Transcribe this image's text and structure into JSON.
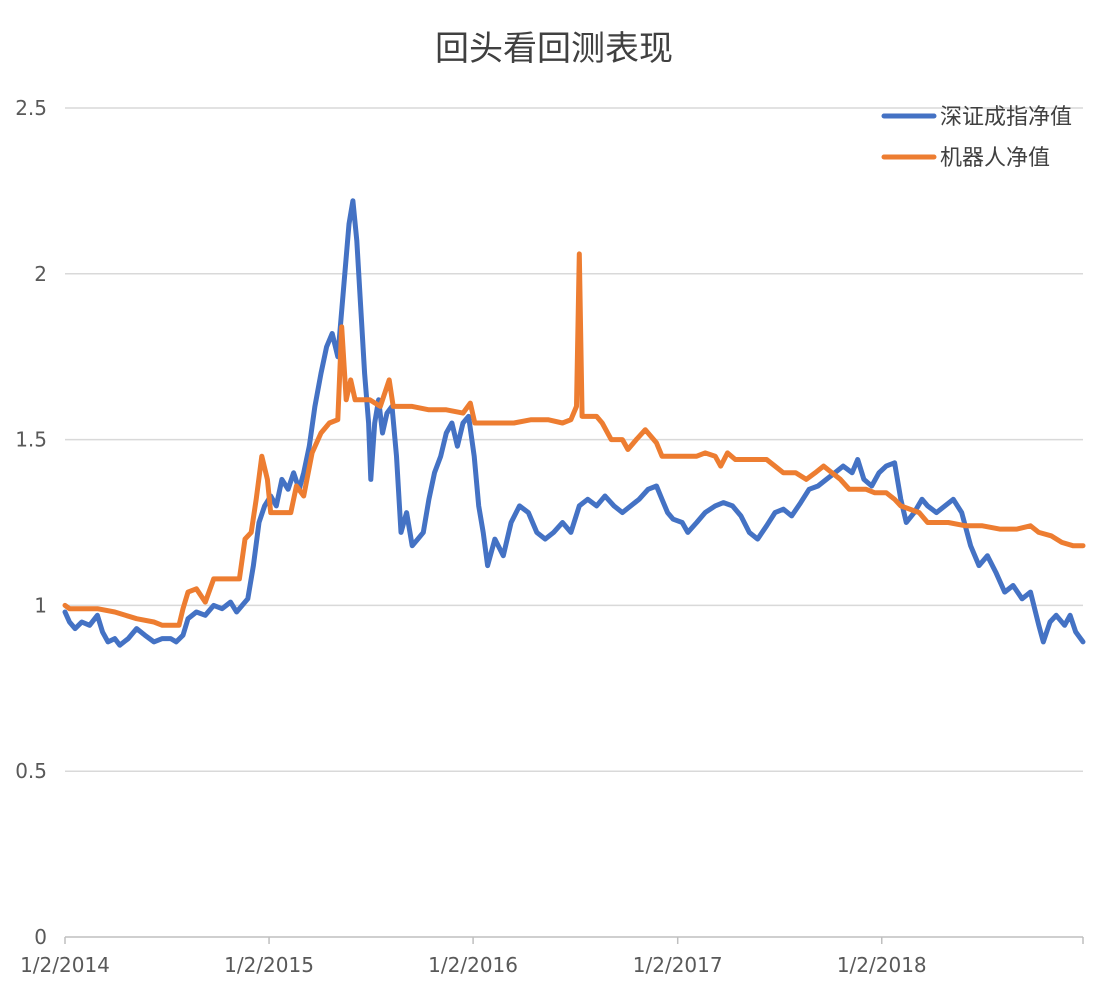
{
  "chart_data": {
    "type": "line",
    "title": "回头看回测表现",
    "xlabel": "",
    "ylabel": "",
    "ylim": [
      0,
      2.5
    ],
    "yticks": [
      "0",
      "0.5",
      "1",
      "1.5",
      "2",
      "2.5"
    ],
    "xlim": [
      "2014-01-02",
      "2018-12-28"
    ],
    "xticks": [
      "1/2/2014",
      "1/2/2015",
      "1/2/2016",
      "1/2/2017",
      "1/2/2018"
    ],
    "xtick_dates": [
      "2014-01-02",
      "2015-01-02",
      "2016-01-02",
      "2017-01-02",
      "2018-01-02"
    ],
    "grid": "horizontal",
    "legend": "top-right",
    "series": [
      {
        "name": "深证成指净值",
        "color": "#4472C4",
        "points": [
          [
            "2014-01-02",
            0.98
          ],
          [
            "2014-01-10",
            0.95
          ],
          [
            "2014-01-20",
            0.93
          ],
          [
            "2014-02-01",
            0.95
          ],
          [
            "2014-02-15",
            0.94
          ],
          [
            "2014-03-01",
            0.97
          ],
          [
            "2014-03-10",
            0.92
          ],
          [
            "2014-03-20",
            0.89
          ],
          [
            "2014-04-01",
            0.9
          ],
          [
            "2014-04-10",
            0.88
          ],
          [
            "2014-04-25",
            0.9
          ],
          [
            "2014-05-10",
            0.93
          ],
          [
            "2014-05-25",
            0.91
          ],
          [
            "2014-06-10",
            0.89
          ],
          [
            "2014-06-25",
            0.9
          ],
          [
            "2014-07-10",
            0.9
          ],
          [
            "2014-07-20",
            0.89
          ],
          [
            "2014-08-01",
            0.91
          ],
          [
            "2014-08-10",
            0.96
          ],
          [
            "2014-08-25",
            0.98
          ],
          [
            "2014-09-10",
            0.97
          ],
          [
            "2014-09-25",
            1.0
          ],
          [
            "2014-10-10",
            0.99
          ],
          [
            "2014-10-25",
            1.01
          ],
          [
            "2014-11-05",
            0.98
          ],
          [
            "2014-11-15",
            1.0
          ],
          [
            "2014-11-25",
            1.02
          ],
          [
            "2014-12-05",
            1.12
          ],
          [
            "2014-12-15",
            1.25
          ],
          [
            "2014-12-25",
            1.3
          ],
          [
            "2015-01-05",
            1.33
          ],
          [
            "2015-01-15",
            1.3
          ],
          [
            "2015-01-25",
            1.38
          ],
          [
            "2015-02-05",
            1.35
          ],
          [
            "2015-02-15",
            1.4
          ],
          [
            "2015-02-25",
            1.35
          ],
          [
            "2015-03-05",
            1.4
          ],
          [
            "2015-03-15",
            1.48
          ],
          [
            "2015-03-25",
            1.6
          ],
          [
            "2015-04-05",
            1.7
          ],
          [
            "2015-04-15",
            1.78
          ],
          [
            "2015-04-25",
            1.82
          ],
          [
            "2015-05-05",
            1.75
          ],
          [
            "2015-05-15",
            1.95
          ],
          [
            "2015-05-25",
            2.15
          ],
          [
            "2015-06-01",
            2.22
          ],
          [
            "2015-06-08",
            2.1
          ],
          [
            "2015-06-15",
            1.9
          ],
          [
            "2015-06-22",
            1.7
          ],
          [
            "2015-06-29",
            1.55
          ],
          [
            "2015-07-03",
            1.38
          ],
          [
            "2015-07-10",
            1.55
          ],
          [
            "2015-07-17",
            1.62
          ],
          [
            "2015-07-24",
            1.52
          ],
          [
            "2015-08-01",
            1.58
          ],
          [
            "2015-08-10",
            1.6
          ],
          [
            "2015-08-18",
            1.45
          ],
          [
            "2015-08-26",
            1.22
          ],
          [
            "2015-09-05",
            1.28
          ],
          [
            "2015-09-15",
            1.18
          ],
          [
            "2015-09-25",
            1.2
          ],
          [
            "2015-10-05",
            1.22
          ],
          [
            "2015-10-15",
            1.32
          ],
          [
            "2015-10-25",
            1.4
          ],
          [
            "2015-11-05",
            1.45
          ],
          [
            "2015-11-15",
            1.52
          ],
          [
            "2015-11-25",
            1.55
          ],
          [
            "2015-12-05",
            1.48
          ],
          [
            "2015-12-15",
            1.55
          ],
          [
            "2015-12-25",
            1.57
          ],
          [
            "2016-01-04",
            1.45
          ],
          [
            "2016-01-12",
            1.3
          ],
          [
            "2016-01-20",
            1.22
          ],
          [
            "2016-01-28",
            1.12
          ],
          [
            "2016-02-10",
            1.2
          ],
          [
            "2016-02-25",
            1.15
          ],
          [
            "2016-03-10",
            1.25
          ],
          [
            "2016-03-25",
            1.3
          ],
          [
            "2016-04-10",
            1.28
          ],
          [
            "2016-04-25",
            1.22
          ],
          [
            "2016-05-10",
            1.2
          ],
          [
            "2016-05-25",
            1.22
          ],
          [
            "2016-06-10",
            1.25
          ],
          [
            "2016-06-25",
            1.22
          ],
          [
            "2016-07-10",
            1.3
          ],
          [
            "2016-07-25",
            1.32
          ],
          [
            "2016-08-10",
            1.3
          ],
          [
            "2016-08-25",
            1.33
          ],
          [
            "2016-09-10",
            1.3
          ],
          [
            "2016-09-25",
            1.28
          ],
          [
            "2016-10-10",
            1.3
          ],
          [
            "2016-10-25",
            1.32
          ],
          [
            "2016-11-10",
            1.35
          ],
          [
            "2016-11-25",
            1.36
          ],
          [
            "2016-12-05",
            1.32
          ],
          [
            "2016-12-15",
            1.28
          ],
          [
            "2016-12-25",
            1.26
          ],
          [
            "2017-01-10",
            1.25
          ],
          [
            "2017-01-20",
            1.22
          ],
          [
            "2017-02-05",
            1.25
          ],
          [
            "2017-02-20",
            1.28
          ],
          [
            "2017-03-10",
            1.3
          ],
          [
            "2017-03-25",
            1.31
          ],
          [
            "2017-04-10",
            1.3
          ],
          [
            "2017-04-25",
            1.27
          ],
          [
            "2017-05-10",
            1.22
          ],
          [
            "2017-05-25",
            1.2
          ],
          [
            "2017-06-10",
            1.24
          ],
          [
            "2017-06-25",
            1.28
          ],
          [
            "2017-07-10",
            1.29
          ],
          [
            "2017-07-25",
            1.27
          ],
          [
            "2017-08-10",
            1.31
          ],
          [
            "2017-08-25",
            1.35
          ],
          [
            "2017-09-10",
            1.36
          ],
          [
            "2017-09-25",
            1.38
          ],
          [
            "2017-10-10",
            1.4
          ],
          [
            "2017-10-25",
            1.42
          ],
          [
            "2017-11-10",
            1.4
          ],
          [
            "2017-11-20",
            1.44
          ],
          [
            "2017-12-01",
            1.38
          ],
          [
            "2017-12-15",
            1.36
          ],
          [
            "2017-12-28",
            1.4
          ],
          [
            "2018-01-10",
            1.42
          ],
          [
            "2018-01-25",
            1.43
          ],
          [
            "2018-02-05",
            1.32
          ],
          [
            "2018-02-15",
            1.25
          ],
          [
            "2018-03-01",
            1.28
          ],
          [
            "2018-03-15",
            1.32
          ],
          [
            "2018-03-25",
            1.3
          ],
          [
            "2018-04-10",
            1.28
          ],
          [
            "2018-04-25",
            1.3
          ],
          [
            "2018-05-10",
            1.32
          ],
          [
            "2018-05-25",
            1.28
          ],
          [
            "2018-06-10",
            1.18
          ],
          [
            "2018-06-25",
            1.12
          ],
          [
            "2018-07-10",
            1.15
          ],
          [
            "2018-07-25",
            1.1
          ],
          [
            "2018-08-10",
            1.04
          ],
          [
            "2018-08-25",
            1.06
          ],
          [
            "2018-09-10",
            1.02
          ],
          [
            "2018-09-25",
            1.04
          ],
          [
            "2018-10-10",
            0.94
          ],
          [
            "2018-10-18",
            0.89
          ],
          [
            "2018-10-30",
            0.95
          ],
          [
            "2018-11-10",
            0.97
          ],
          [
            "2018-11-25",
            0.94
          ],
          [
            "2018-12-05",
            0.97
          ],
          [
            "2018-12-15",
            0.92
          ],
          [
            "2018-12-28",
            0.89
          ]
        ]
      },
      {
        "name": "机器人净值",
        "color": "#ED7D31",
        "points": [
          [
            "2014-01-02",
            1.0
          ],
          [
            "2014-01-10",
            0.99
          ],
          [
            "2014-03-01",
            0.99
          ],
          [
            "2014-04-01",
            0.98
          ],
          [
            "2014-04-20",
            0.97
          ],
          [
            "2014-05-10",
            0.96
          ],
          [
            "2014-06-10",
            0.95
          ],
          [
            "2014-06-25",
            0.94
          ],
          [
            "2014-07-25",
            0.94
          ],
          [
            "2014-08-01",
            0.99
          ],
          [
            "2014-08-10",
            1.04
          ],
          [
            "2014-08-25",
            1.05
          ],
          [
            "2014-09-10",
            1.01
          ],
          [
            "2014-09-25",
            1.08
          ],
          [
            "2014-11-10",
            1.08
          ],
          [
            "2014-11-20",
            1.2
          ],
          [
            "2014-12-01",
            1.22
          ],
          [
            "2014-12-10",
            1.32
          ],
          [
            "2014-12-20",
            1.45
          ],
          [
            "2014-12-30",
            1.38
          ],
          [
            "2015-01-05",
            1.28
          ],
          [
            "2015-01-15",
            1.28
          ],
          [
            "2015-02-10",
            1.28
          ],
          [
            "2015-02-20",
            1.36
          ],
          [
            "2015-03-05",
            1.33
          ],
          [
            "2015-03-20",
            1.46
          ],
          [
            "2015-04-05",
            1.52
          ],
          [
            "2015-04-20",
            1.55
          ],
          [
            "2015-05-05",
            1.56
          ],
          [
            "2015-05-12",
            1.84
          ],
          [
            "2015-05-20",
            1.62
          ],
          [
            "2015-05-28",
            1.68
          ],
          [
            "2015-06-05",
            1.62
          ],
          [
            "2015-07-01",
            1.62
          ],
          [
            "2015-07-20",
            1.6
          ],
          [
            "2015-08-05",
            1.68
          ],
          [
            "2015-08-12",
            1.6
          ],
          [
            "2015-09-15",
            1.6
          ],
          [
            "2015-10-15",
            1.59
          ],
          [
            "2015-11-15",
            1.59
          ],
          [
            "2015-12-15",
            1.58
          ],
          [
            "2015-12-28",
            1.61
          ],
          [
            "2016-01-05",
            1.55
          ],
          [
            "2016-02-15",
            1.55
          ],
          [
            "2016-03-15",
            1.55
          ],
          [
            "2016-04-15",
            1.56
          ],
          [
            "2016-05-15",
            1.56
          ],
          [
            "2016-06-10",
            1.55
          ],
          [
            "2016-06-25",
            1.56
          ],
          [
            "2016-07-05",
            1.6
          ],
          [
            "2016-07-10",
            2.06
          ],
          [
            "2016-07-15",
            1.57
          ],
          [
            "2016-07-25",
            1.57
          ],
          [
            "2016-08-10",
            1.57
          ],
          [
            "2016-08-20",
            1.55
          ],
          [
            "2016-09-05",
            1.5
          ],
          [
            "2016-09-25",
            1.5
          ],
          [
            "2016-10-05",
            1.47
          ],
          [
            "2016-10-20",
            1.5
          ],
          [
            "2016-11-05",
            1.53
          ],
          [
            "2016-11-25",
            1.49
          ],
          [
            "2016-12-05",
            1.45
          ],
          [
            "2017-01-15",
            1.45
          ],
          [
            "2017-02-05",
            1.45
          ],
          [
            "2017-02-20",
            1.46
          ],
          [
            "2017-03-10",
            1.45
          ],
          [
            "2017-03-20",
            1.42
          ],
          [
            "2017-04-01",
            1.46
          ],
          [
            "2017-04-15",
            1.44
          ],
          [
            "2017-05-15",
            1.44
          ],
          [
            "2017-06-10",
            1.44
          ],
          [
            "2017-06-25",
            1.42
          ],
          [
            "2017-07-10",
            1.4
          ],
          [
            "2017-08-01",
            1.4
          ],
          [
            "2017-08-20",
            1.38
          ],
          [
            "2017-09-05",
            1.4
          ],
          [
            "2017-09-20",
            1.42
          ],
          [
            "2017-10-05",
            1.4
          ],
          [
            "2017-10-20",
            1.38
          ],
          [
            "2017-11-05",
            1.35
          ],
          [
            "2017-12-05",
            1.35
          ],
          [
            "2017-12-20",
            1.34
          ],
          [
            "2018-01-10",
            1.34
          ],
          [
            "2018-01-25",
            1.32
          ],
          [
            "2018-02-05",
            1.3
          ],
          [
            "2018-03-10",
            1.28
          ],
          [
            "2018-03-25",
            1.25
          ],
          [
            "2018-05-01",
            1.25
          ],
          [
            "2018-06-01",
            1.24
          ],
          [
            "2018-07-01",
            1.24
          ],
          [
            "2018-08-01",
            1.23
          ],
          [
            "2018-09-01",
            1.23
          ],
          [
            "2018-09-25",
            1.24
          ],
          [
            "2018-10-10",
            1.22
          ],
          [
            "2018-11-01",
            1.21
          ],
          [
            "2018-11-20",
            1.19
          ],
          [
            "2018-12-10",
            1.18
          ],
          [
            "2018-12-28",
            1.18
          ]
        ]
      }
    ]
  }
}
